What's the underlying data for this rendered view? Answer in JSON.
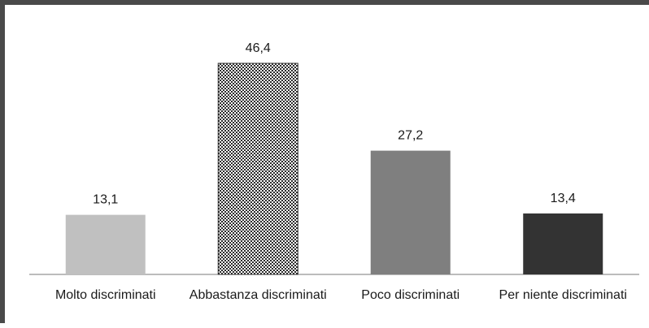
{
  "chart_data": {
    "type": "bar",
    "categories": [
      "Molto discriminati",
      "Abbastanza discriminati",
      "Poco discriminati",
      "Per niente discriminati"
    ],
    "values": [
      13.1,
      46.4,
      27.2,
      13.4
    ],
    "value_labels": [
      "13,1",
      "46,4",
      "27,2",
      "13,4"
    ],
    "title": "",
    "xlabel": "",
    "ylabel": "",
    "ylim": [
      0,
      50
    ],
    "grid": false,
    "legend": "none",
    "bar_styles": [
      "#c0c0c0",
      "checker",
      "#7f7f7f",
      "#333333"
    ]
  }
}
